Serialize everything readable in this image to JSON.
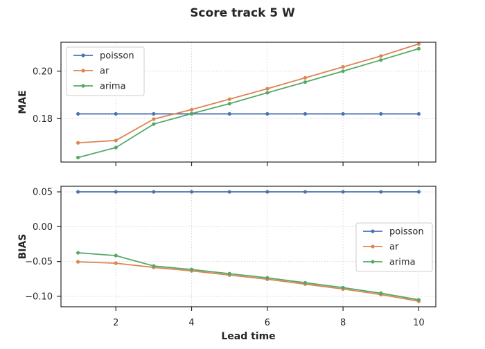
{
  "figure": {
    "title": "Score track 5 W"
  },
  "chart_data": [
    {
      "type": "line",
      "ylabel": "MAE",
      "xlabel": "",
      "x": [
        1,
        2,
        3,
        4,
        5,
        6,
        7,
        8,
        9,
        10
      ],
      "xlim": [
        0.55,
        10.45
      ],
      "ylim": [
        0.1617,
        0.2122
      ],
      "xticks": [
        2,
        4,
        6,
        8,
        10
      ],
      "yticks": [
        0.18,
        0.2
      ],
      "ytick_labels": [
        "0.18",
        "0.20"
      ],
      "show_xtick_labels": false,
      "grid": true,
      "legend_loc": "upper left",
      "series": [
        {
          "name": "poisson",
          "color": "#4c72b0",
          "values": [
            0.182,
            0.182,
            0.182,
            0.182,
            0.182,
            0.182,
            0.182,
            0.182,
            0.182,
            0.182
          ]
        },
        {
          "name": "ar",
          "color": "#dd8452",
          "values": [
            0.1698,
            0.1708,
            0.1798,
            0.1838,
            0.1882,
            0.1926,
            0.1972,
            0.2018,
            0.2064,
            0.2115
          ]
        },
        {
          "name": "arima",
          "color": "#55a868",
          "values": [
            0.1636,
            0.1678,
            0.1777,
            0.1821,
            0.1863,
            0.1909,
            0.1954,
            0.2,
            0.2047,
            0.2095
          ]
        }
      ]
    },
    {
      "type": "line",
      "ylabel": "BIAS",
      "xlabel": "Lead time",
      "x": [
        1,
        2,
        3,
        4,
        5,
        6,
        7,
        8,
        9,
        10
      ],
      "xlim": [
        0.55,
        10.45
      ],
      "ylim": [
        -0.115,
        0.058
      ],
      "xticks": [
        2,
        4,
        6,
        8,
        10
      ],
      "xtick_labels": [
        "2",
        "4",
        "6",
        "8",
        "10"
      ],
      "yticks": [
        0.05,
        0.0,
        -0.05,
        -0.1
      ],
      "ytick_labels": [
        "0.05",
        "0.00",
        "−0.05",
        "−0.10"
      ],
      "show_xtick_labels": true,
      "grid": true,
      "legend_loc": "center right",
      "series": [
        {
          "name": "poisson",
          "color": "#4c72b0",
          "values": [
            0.05,
            0.05,
            0.05,
            0.05,
            0.05,
            0.05,
            0.05,
            0.05,
            0.05,
            0.05
          ]
        },
        {
          "name": "ar",
          "color": "#dd8452",
          "values": [
            -0.0505,
            -0.0525,
            -0.0585,
            -0.0635,
            -0.0695,
            -0.0755,
            -0.0825,
            -0.0895,
            -0.0975,
            -0.107
          ]
        },
        {
          "name": "arima",
          "color": "#55a868",
          "values": [
            -0.0375,
            -0.0415,
            -0.0565,
            -0.0615,
            -0.0675,
            -0.0735,
            -0.0805,
            -0.0875,
            -0.0955,
            -0.105
          ]
        }
      ]
    }
  ]
}
